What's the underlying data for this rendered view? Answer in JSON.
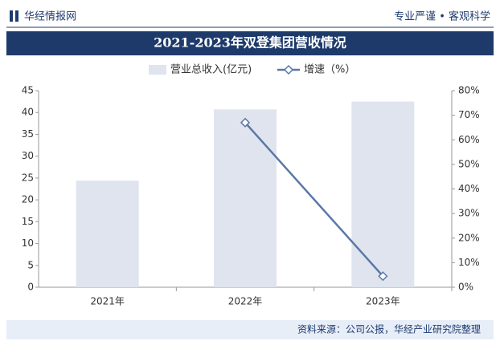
{
  "chart_data": {
    "type": "bar-line",
    "brand": "华经情报网",
    "slogan": "专业严谨 • 客观科学",
    "title": "2021-2023年双登集团营收情况",
    "source": "资料来源：公司公报，华经产业研究院整理",
    "categories": [
      "2021年",
      "2022年",
      "2023年"
    ],
    "series": [
      {
        "name": "营业总收入(亿元)",
        "type": "bar",
        "color": "#dfe4ee",
        "values": [
          24.4,
          40.7,
          42.5
        ]
      },
      {
        "name": "增速（%）",
        "type": "line",
        "axis": "y2",
        "color": "#5a78a8",
        "values": [
          null,
          67,
          4.5
        ]
      }
    ],
    "ylim": [
      0,
      45
    ],
    "yticks": [
      0,
      5,
      10,
      15,
      20,
      25,
      30,
      35,
      40,
      45
    ],
    "y2lim": [
      0,
      80
    ],
    "y2ticks": [
      {
        "value": 0,
        "label": "0%"
      },
      {
        "value": 10,
        "label": "10%"
      },
      {
        "value": 20,
        "label": "20%"
      },
      {
        "value": 30,
        "label": "30%"
      },
      {
        "value": 40,
        "label": "40%"
      },
      {
        "value": 50,
        "label": "50%"
      },
      {
        "value": 60,
        "label": "60%"
      },
      {
        "value": 70,
        "label": "70%"
      },
      {
        "value": 80,
        "label": "80%"
      }
    ]
  }
}
